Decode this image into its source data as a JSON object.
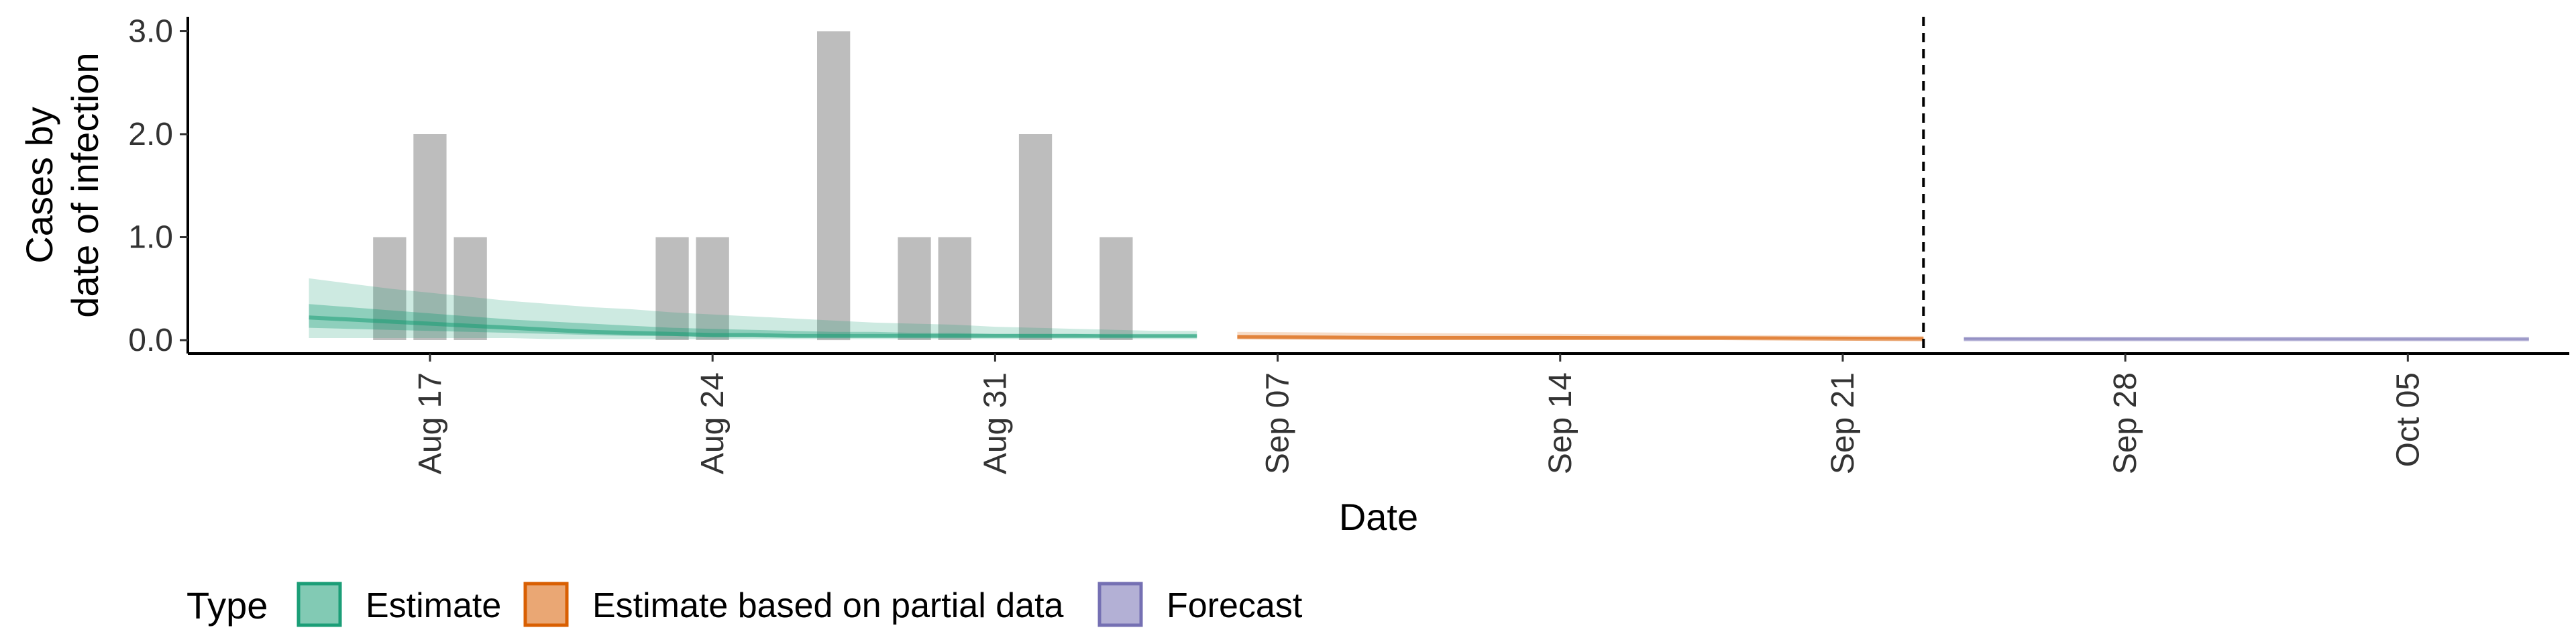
{
  "chart_data": {
    "type": "bar",
    "xlabel": "Date",
    "ylabel": [
      "Cases by",
      "date of infection"
    ],
    "ylim": [
      0,
      3.0
    ],
    "yticks": [
      0.0,
      1.0,
      2.0,
      3.0
    ],
    "ytick_labels": [
      "0.0",
      "1.0",
      "2.0",
      "3.0"
    ],
    "xlim": [
      "2025-08-11",
      "2025-10-09"
    ],
    "xticks": [
      "2025-08-17",
      "2025-08-24",
      "2025-08-31",
      "2025-09-07",
      "2025-09-14",
      "2025-09-21",
      "2025-09-28",
      "2025-10-05"
    ],
    "xtick_labels": [
      "Aug 17",
      "Aug 24",
      "Aug 31",
      "Sep 07",
      "Sep 14",
      "Sep 21",
      "Sep 28",
      "Oct 05"
    ],
    "observed_cases": [
      {
        "date": "2025-08-16",
        "value": 1
      },
      {
        "date": "2025-08-17",
        "value": 2
      },
      {
        "date": "2025-08-18",
        "value": 1
      },
      {
        "date": "2025-08-23",
        "value": 1
      },
      {
        "date": "2025-08-24",
        "value": 1
      },
      {
        "date": "2025-08-27",
        "value": 3
      },
      {
        "date": "2025-08-29",
        "value": 1
      },
      {
        "date": "2025-08-30",
        "value": 1
      },
      {
        "date": "2025-09-01",
        "value": 2
      },
      {
        "date": "2025-09-03",
        "value": 1
      }
    ],
    "series": [
      {
        "type": "Estimate",
        "color": "#1b9e77",
        "dates": [
          "2025-08-14",
          "2025-08-15",
          "2025-08-16",
          "2025-08-17",
          "2025-08-18",
          "2025-08-19",
          "2025-08-20",
          "2025-08-21",
          "2025-08-22",
          "2025-08-23",
          "2025-08-24",
          "2025-08-25",
          "2025-08-26",
          "2025-08-27",
          "2025-08-28",
          "2025-08-29",
          "2025-08-30",
          "2025-08-31",
          "2025-09-01",
          "2025-09-02",
          "2025-09-03",
          "2025-09-04",
          "2025-09-05"
        ],
        "median": [
          0.22,
          0.2,
          0.18,
          0.16,
          0.14,
          0.12,
          0.1,
          0.08,
          0.07,
          0.06,
          0.05,
          0.05,
          0.04,
          0.04,
          0.04,
          0.04,
          0.04,
          0.04,
          0.04,
          0.04,
          0.04,
          0.04,
          0.04
        ],
        "lower_90": [
          0.02,
          0.02,
          0.02,
          0.02,
          0.02,
          0.02,
          0.01,
          0.01,
          0.01,
          0.01,
          0.01,
          0.01,
          0.01,
          0.01,
          0.01,
          0.01,
          0.01,
          0.01,
          0.01,
          0.01,
          0.01,
          0.01,
          0.01
        ],
        "upper_90": [
          0.6,
          0.55,
          0.5,
          0.46,
          0.42,
          0.38,
          0.35,
          0.32,
          0.3,
          0.27,
          0.25,
          0.23,
          0.21,
          0.19,
          0.17,
          0.16,
          0.15,
          0.13,
          0.12,
          0.11,
          0.1,
          0.09,
          0.09
        ],
        "lower_50": [
          0.12,
          0.11,
          0.1,
          0.09,
          0.08,
          0.07,
          0.06,
          0.05,
          0.04,
          0.04,
          0.03,
          0.03,
          0.03,
          0.03,
          0.03,
          0.03,
          0.03,
          0.03,
          0.03,
          0.03,
          0.03,
          0.03,
          0.03
        ],
        "upper_50": [
          0.35,
          0.32,
          0.29,
          0.26,
          0.23,
          0.2,
          0.18,
          0.16,
          0.14,
          0.12,
          0.11,
          0.1,
          0.09,
          0.08,
          0.08,
          0.07,
          0.07,
          0.06,
          0.06,
          0.06,
          0.05,
          0.05,
          0.05
        ]
      },
      {
        "type": "Estimate based on partial data",
        "color": "#d95f02",
        "dates": [
          "2025-09-06",
          "2025-09-10",
          "2025-09-14",
          "2025-09-18",
          "2025-09-23"
        ],
        "median": [
          0.03,
          0.02,
          0.02,
          0.02,
          0.01
        ],
        "lower_90": [
          0.01,
          0.01,
          0.01,
          0.01,
          0.0
        ],
        "upper_90": [
          0.08,
          0.07,
          0.06,
          0.05,
          0.04
        ],
        "lower_50": [
          0.02,
          0.01,
          0.01,
          0.01,
          0.01
        ],
        "upper_50": [
          0.05,
          0.04,
          0.04,
          0.03,
          0.03
        ]
      },
      {
        "type": "Forecast",
        "color": "#7570b3",
        "dates": [
          "2025-09-24",
          "2025-09-30",
          "2025-10-08"
        ],
        "median": [
          0.01,
          0.01,
          0.01
        ],
        "lower_90": [
          0.0,
          0.0,
          0.0
        ],
        "upper_90": [
          0.03,
          0.025,
          0.02
        ],
        "lower_50": [
          0.005,
          0.005,
          0.005
        ],
        "upper_50": [
          0.02,
          0.015,
          0.015
        ]
      }
    ],
    "vline_date": "2025-09-23",
    "legend": {
      "title": "Type",
      "position": "bottom-left",
      "entries": [
        {
          "label": "Estimate",
          "color": "#1b9e77"
        },
        {
          "label": "Estimate based on partial data",
          "color": "#d95f02"
        },
        {
          "label": "Forecast",
          "color": "#7570b3"
        }
      ]
    }
  }
}
